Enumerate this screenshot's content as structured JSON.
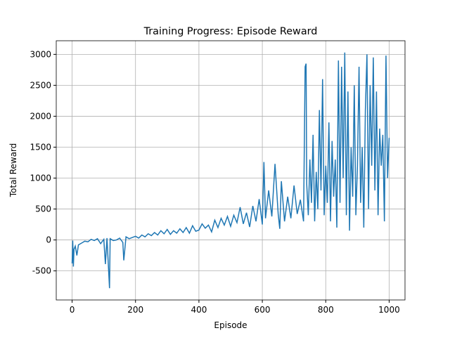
{
  "chart_data": {
    "type": "line",
    "title": "Training Progress: Episode Reward",
    "xlabel": "Episode",
    "ylabel": "Total Reward",
    "x": [
      0,
      2,
      4,
      6,
      10,
      15,
      20,
      30,
      40,
      50,
      60,
      70,
      80,
      90,
      100,
      105,
      110,
      118,
      120,
      130,
      140,
      150,
      160,
      163,
      170,
      180,
      190,
      200,
      210,
      220,
      230,
      240,
      250,
      260,
      270,
      280,
      290,
      300,
      310,
      320,
      330,
      340,
      350,
      360,
      370,
      380,
      390,
      400,
      410,
      420,
      430,
      440,
      450,
      460,
      470,
      480,
      490,
      500,
      510,
      520,
      530,
      540,
      550,
      560,
      570,
      580,
      590,
      600,
      605,
      610,
      620,
      630,
      640,
      650,
      655,
      660,
      670,
      680,
      690,
      700,
      710,
      720,
      730,
      735,
      738,
      740,
      745,
      750,
      755,
      760,
      765,
      770,
      775,
      780,
      785,
      790,
      795,
      800,
      805,
      810,
      815,
      820,
      825,
      830,
      835,
      840,
      845,
      850,
      855,
      860,
      865,
      870,
      875,
      880,
      885,
      890,
      895,
      900,
      905,
      910,
      915,
      920,
      925,
      930,
      935,
      940,
      945,
      950,
      955,
      960,
      965,
      970,
      975,
      980,
      985,
      990,
      995,
      1000
    ],
    "series": [
      {
        "name": "Episode Reward",
        "color": "#1f77b4",
        "values": [
          -380,
          -10,
          -430,
          -150,
          -100,
          -250,
          -80,
          -50,
          -20,
          -30,
          10,
          -10,
          20,
          -60,
          10,
          -390,
          30,
          -780,
          20,
          -10,
          0,
          30,
          -40,
          -330,
          50,
          20,
          40,
          60,
          30,
          80,
          50,
          100,
          70,
          120,
          80,
          150,
          100,
          170,
          90,
          150,
          110,
          180,
          120,
          200,
          110,
          230,
          140,
          160,
          260,
          190,
          240,
          130,
          320,
          200,
          350,
          240,
          380,
          220,
          400,
          280,
          530,
          260,
          440,
          210,
          550,
          300,
          660,
          250,
          1260,
          350,
          800,
          380,
          1230,
          420,
          180,
          950,
          300,
          700,
          350,
          880,
          420,
          650,
          300,
          2800,
          2850,
          900,
          400,
          1300,
          600,
          1700,
          300,
          1100,
          500,
          2100,
          800,
          2600,
          400,
          1200,
          600,
          1900,
          300,
          1600,
          700,
          1300,
          200,
          2900,
          600,
          2800,
          1000,
          3030,
          400,
          2400,
          150,
          1500,
          700,
          2500,
          400,
          1200,
          2800,
          600,
          1500,
          200,
          2100,
          3000,
          500,
          2500,
          1200,
          2950,
          800,
          2400,
          400,
          1800,
          1200,
          1700,
          300,
          2980,
          1000,
          1650
        ]
      }
    ],
    "xlim": [
      -50,
      1050
    ],
    "ylim": [
      -970,
      3220
    ],
    "xticks": [
      0,
      200,
      400,
      600,
      800,
      1000
    ],
    "yticks": [
      -500,
      0,
      500,
      1000,
      1500,
      2000,
      2500,
      3000
    ],
    "grid": true
  }
}
